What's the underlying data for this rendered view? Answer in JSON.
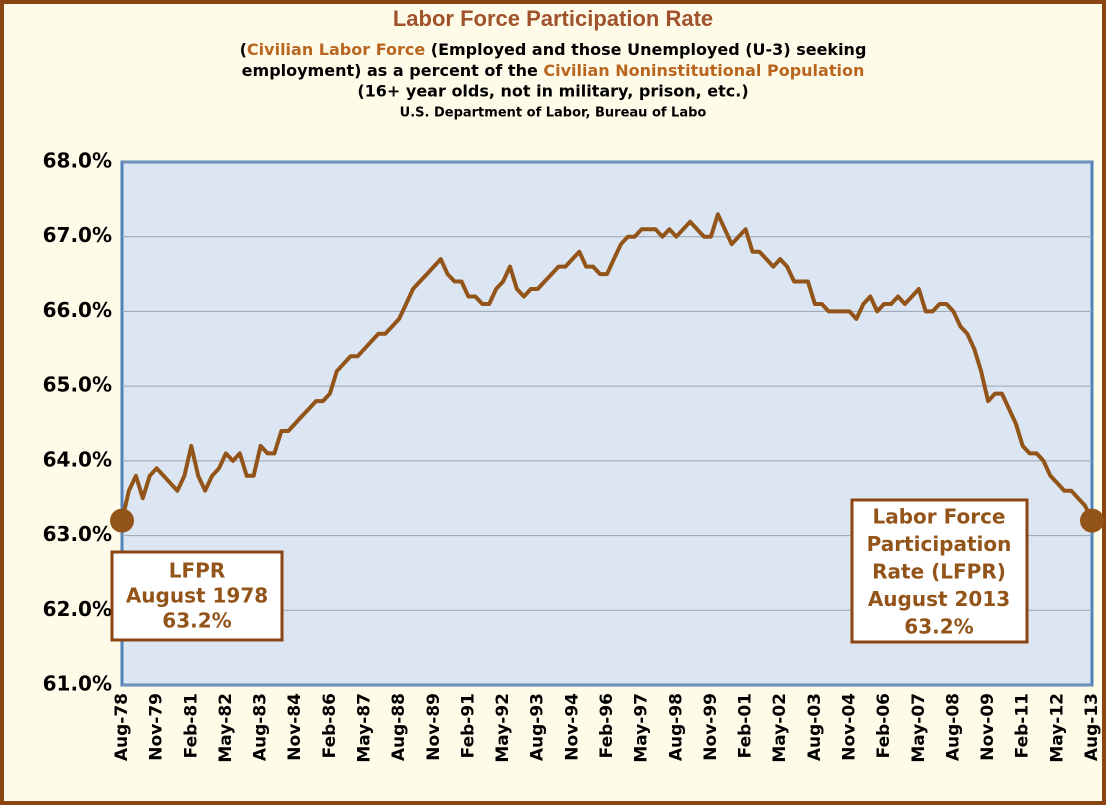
{
  "chart_data": {
    "type": "line",
    "title": "Labor Force Participation Rate",
    "subtitle": [
      [
        "(",
        "Civilian Labor Force",
        " (Employed and those Unemployed (U-3) seeking"
      ],
      [
        "employment) as a percent of the ",
        "Civilian Noninstitutional Population"
      ],
      [
        "(16+ year olds, not in military, prison, etc.)"
      ],
      [
        "U.S. Department of Labor, Bureau of Labo"
      ]
    ],
    "annotations": [
      [
        "LFPR",
        "August 1978",
        "63.2%"
      ],
      [
        "Labor Force",
        "Participation",
        "Rate (LFPR)",
        "August 2013",
        "63.2%"
      ]
    ],
    "categories": [
      "Aug-78",
      null,
      null,
      null,
      null,
      "Nov-79",
      null,
      null,
      null,
      null,
      "Feb-81",
      null,
      null,
      null,
      null,
      "May-82",
      null,
      null,
      null,
      null,
      "Aug-83",
      null,
      null,
      null,
      null,
      "Nov-84",
      null,
      null,
      null,
      null,
      "Feb-86",
      null,
      null,
      null,
      null,
      "May-87",
      null,
      null,
      null,
      null,
      "Aug-88",
      null,
      null,
      null,
      null,
      "Nov-89",
      null,
      null,
      null,
      null,
      "Feb-91",
      null,
      null,
      null,
      null,
      "May-92",
      null,
      null,
      null,
      null,
      "Aug-93",
      null,
      null,
      null,
      null,
      "Nov-94",
      null,
      null,
      null,
      null,
      "Feb-96",
      null,
      null,
      null,
      null,
      "May-97",
      null,
      null,
      null,
      null,
      "Aug-98",
      null,
      null,
      null,
      null,
      "Nov-99",
      null,
      null,
      null,
      null,
      "Feb-01",
      null,
      null,
      null,
      null,
      "May-02",
      null,
      null,
      null,
      null,
      "Aug-03",
      null,
      null,
      null,
      null,
      "Nov-04",
      null,
      null,
      null,
      null,
      "Feb-06",
      null,
      null,
      null,
      null,
      "May-07",
      null,
      null,
      null,
      null,
      "Aug-08",
      null,
      null,
      null,
      null,
      "Nov-09",
      null,
      null,
      null,
      null,
      "Feb-11",
      null,
      null,
      null,
      null,
      "May-12",
      null,
      null,
      null,
      null,
      "Aug-13"
    ],
    "values": [
      63.2,
      63.6,
      63.8,
      63.5,
      63.8,
      63.9,
      63.8,
      63.7,
      63.6,
      63.8,
      64.2,
      63.8,
      63.6,
      63.8,
      63.9,
      64.1,
      64.0,
      64.1,
      63.8,
      63.8,
      64.2,
      64.1,
      64.1,
      64.4,
      64.4,
      64.5,
      64.6,
      64.7,
      64.8,
      64.8,
      64.9,
      65.2,
      65.3,
      65.4,
      65.4,
      65.5,
      65.6,
      65.7,
      65.7,
      65.8,
      65.9,
      66.1,
      66.3,
      66.4,
      66.5,
      66.6,
      66.7,
      66.5,
      66.4,
      66.4,
      66.2,
      66.2,
      66.1,
      66.1,
      66.3,
      66.4,
      66.6,
      66.3,
      66.2,
      66.3,
      66.3,
      66.4,
      66.5,
      66.6,
      66.6,
      66.7,
      66.8,
      66.6,
      66.6,
      66.5,
      66.5,
      66.7,
      66.9,
      67.0,
      67.0,
      67.1,
      67.1,
      67.1,
      67.0,
      67.1,
      67.0,
      67.1,
      67.2,
      67.1,
      67.0,
      67.0,
      67.3,
      67.1,
      66.9,
      67.0,
      67.1,
      66.8,
      66.8,
      66.7,
      66.6,
      66.7,
      66.6,
      66.4,
      66.4,
      66.4,
      66.1,
      66.1,
      66.0,
      66.0,
      66.0,
      66.0,
      65.9,
      66.1,
      66.2,
      66.0,
      66.1,
      66.1,
      66.2,
      66.1,
      66.2,
      66.3,
      66.0,
      66.0,
      66.1,
      66.1,
      66.0,
      65.8,
      65.7,
      65.5,
      65.2,
      64.8,
      64.9,
      64.9,
      64.7,
      64.5,
      64.2,
      64.1,
      64.1,
      64.0,
      63.8,
      63.7,
      63.6,
      63.6,
      63.5,
      63.4,
      63.2
    ],
    "color": "#93541a",
    "ylim": [
      61,
      68
    ],
    "yticks": [
      {
        "value": 61,
        "label": "61.0%"
      },
      {
        "value": 62,
        "label": "62.0%"
      },
      {
        "value": 63,
        "label": "63.0%"
      },
      {
        "value": 64,
        "label": "64.0%"
      },
      {
        "value": 65,
        "label": "65.0%"
      },
      {
        "value": 66,
        "label": "66.0%"
      },
      {
        "value": 67,
        "label": "67.0%"
      },
      {
        "value": 68,
        "label": "68.0%"
      }
    ],
    "grid": true
  }
}
